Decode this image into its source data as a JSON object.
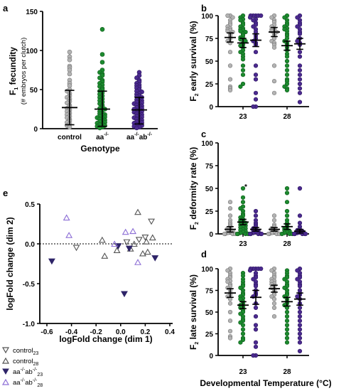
{
  "colors": {
    "control": "#b3b3b3",
    "aa": "#1c8a2e",
    "aaab": "#4b2a8f",
    "aaab_light": "#8d6fd6"
  },
  "panel_a": {
    "label": "a",
    "ylabel_main": "F",
    "ylabel_sub": "1",
    "ylabel_rest": " fecundity",
    "ylabel2": "(# embryos per clutch)",
    "xlabel": "Genotype",
    "cat1": "control",
    "cat2_base": "aa",
    "cat2_sup": "-/-",
    "cat3_base1": "aa",
    "cat3_sup1": "-/-",
    "cat3_base2": "ab",
    "cat3_sup2": "-/-",
    "yticks": [
      "0",
      "50",
      "100",
      "150"
    ]
  },
  "panel_b": {
    "label": "b",
    "ylabel_main": "F",
    "ylabel_sub": "2",
    "ylabel_rest": " early survival (%)",
    "yticks": [
      "0",
      "25",
      "50",
      "75",
      "100"
    ],
    "xticks": [
      "23",
      "28"
    ]
  },
  "panel_c": {
    "label": "c",
    "ylabel_main": "F",
    "ylabel_sub": "2",
    "ylabel_rest": " deformity rate (%)",
    "yticks": [
      "0",
      "25",
      "50",
      "75",
      "100"
    ],
    "xticks": [
      "23",
      "28"
    ],
    "star": "*"
  },
  "panel_d": {
    "label": "d",
    "ylabel_main": "F",
    "ylabel_sub": "2",
    "ylabel_rest": " late survival (%)",
    "yticks": [
      "0",
      "25",
      "50",
      "75",
      "100"
    ],
    "xticks": [
      "23",
      "28"
    ]
  },
  "panel_e": {
    "label": "e",
    "xlabel": "logFold change (dim 1)",
    "ylabel": "logFold change (dim 2)",
    "xticks": [
      "-0.6",
      "-0.4",
      "-0.2",
      "0.0",
      "0.2",
      "0.4"
    ],
    "yticks": [
      "-1.0",
      "-0.5",
      "0.0",
      "0.5"
    ]
  },
  "xlabel_bcd": "Developmental Temperature (°C)",
  "legend": [
    {
      "base": "control",
      "sub": "23",
      "sup1": "",
      "base2": "",
      "sup2": "",
      "marker": "down-open"
    },
    {
      "base": "control",
      "sub": "28",
      "sup1": "",
      "base2": "",
      "sup2": "",
      "marker": "up-open"
    },
    {
      "base": "aa",
      "sup1": "-/-",
      "base2": "ab",
      "sup2": "-/-",
      "sub": "23",
      "marker": "down-filled"
    },
    {
      "base": "aa",
      "sup1": "-/-",
      "base2": "ab",
      "sup2": "-/-",
      "sub": "28",
      "marker": "up-purple"
    }
  ],
  "chart_data": [
    {
      "panel": "a",
      "type": "scatter",
      "categories": [
        "control",
        "aa-/-",
        "aa-/-ab-/-"
      ],
      "ylim": [
        0,
        150
      ],
      "series": [
        {
          "values": [
            98,
            92,
            88,
            80,
            78,
            75,
            70,
            62,
            58,
            55,
            50,
            48,
            45,
            42,
            40,
            38,
            35,
            33,
            30,
            28,
            26,
            24,
            22,
            20,
            18,
            16,
            14,
            12,
            10,
            8,
            6,
            4,
            2
          ],
          "mean": 27,
          "sd_low": 5,
          "sd_high": 49
        },
        {
          "values": [
            127,
            95,
            85,
            75,
            72,
            70,
            68,
            65,
            62,
            60,
            58,
            56,
            54,
            52,
            50,
            48,
            46,
            44,
            42,
            40,
            38,
            36,
            34,
            32,
            30,
            28,
            26,
            25,
            24,
            22,
            20,
            19,
            18,
            17,
            16,
            15,
            14,
            13,
            12,
            11,
            10,
            9,
            8,
            7,
            6,
            5,
            4,
            3,
            2,
            1
          ],
          "mean": 25,
          "sd_low": 3,
          "sd_high": 48
        },
        {
          "values": [
            72,
            68,
            65,
            62,
            60,
            58,
            56,
            55,
            53,
            52,
            50,
            48,
            47,
            45,
            44,
            42,
            41,
            40,
            38,
            37,
            36,
            35,
            34,
            33,
            32,
            31,
            30,
            29,
            28,
            27,
            26,
            25,
            24,
            23,
            22,
            21,
            20,
            19,
            18,
            17,
            16,
            15,
            14,
            13,
            12,
            11,
            10,
            9,
            8,
            7,
            6,
            5,
            4,
            3,
            2,
            1
          ],
          "mean": 24,
          "sd_low": 6,
          "sd_high": 40
        }
      ]
    },
    {
      "panel": "b",
      "type": "scatter",
      "ylim": [
        0,
        100
      ],
      "xticks": [
        "23",
        "28"
      ],
      "groups": [
        {
          "x": "23",
          "series": [
            {
              "values": [
                100,
                100,
                98,
                95,
                92,
                90,
                88,
                86,
                85,
                84,
                83,
                82,
                80,
                78,
                75,
                72,
                70,
                60,
                45,
                30,
                22,
                20,
                18
              ],
              "mean": 76,
              "sem": 5
            },
            {
              "values": [
                100,
                98,
                96,
                95,
                92,
                90,
                88,
                86,
                85,
                84,
                83,
                82,
                80,
                78,
                76,
                75,
                74,
                72,
                70,
                68,
                67,
                65,
                62,
                60,
                58,
                55,
                52,
                45,
                40,
                35,
                25,
                22
              ],
              "mean": 70,
              "sem": 5
            },
            {
              "values": [
                100,
                100,
                100,
                100,
                100,
                98,
                96,
                95,
                92,
                90,
                88,
                85,
                82,
                78,
                75,
                72,
                70,
                68,
                60,
                45,
                35,
                30,
                15,
                8,
                0,
                0
              ],
              "mean": 73,
              "sem": 7
            }
          ]
        },
        {
          "x": "28",
          "series": [
            {
              "values": [
                100,
                98,
                95,
                93,
                90,
                88,
                86,
                85,
                84,
                83,
                82,
                80,
                78,
                75,
                72,
                70,
                68,
                65,
                45,
                28,
                15
              ],
              "mean": 82,
              "sem": 5
            },
            {
              "values": [
                100,
                98,
                95,
                92,
                90,
                88,
                86,
                85,
                83,
                80,
                78,
                75,
                72,
                70,
                68,
                65,
                62,
                58,
                55,
                50,
                45,
                40,
                35,
                30,
                28,
                25,
                22,
                20,
                18
              ],
              "mean": 67,
              "sem": 5
            },
            {
              "values": [
                100,
                98,
                95,
                92,
                90,
                88,
                85,
                82,
                80,
                75,
                72,
                70,
                68,
                60,
                55,
                45,
                40,
                35,
                30,
                25,
                20,
                15,
                5
              ],
              "mean": 69,
              "sem": 6
            }
          ]
        }
      ]
    },
    {
      "panel": "c",
      "type": "scatter",
      "ylim": [
        0,
        100
      ],
      "xticks": [
        "23",
        "28"
      ],
      "groups": [
        {
          "x": "23",
          "series": [
            {
              "values": [
                35,
                28,
                20,
                15,
                12,
                10,
                8,
                6,
                5,
                4,
                3,
                2,
                1,
                0,
                0,
                0,
                0
              ],
              "mean": 5,
              "sem": 3
            },
            {
              "values": [
                50,
                40,
                35,
                30,
                28,
                25,
                22,
                20,
                18,
                16,
                15,
                14,
                13,
                12,
                11,
                10,
                9,
                8,
                7,
                6,
                5,
                4,
                3,
                2,
                1,
                0,
                0,
                0,
                0
              ],
              "mean": 13,
              "sem": 3
            },
            {
              "values": [
                25,
                20,
                15,
                12,
                10,
                8,
                6,
                5,
                4,
                3,
                2,
                1,
                0,
                0,
                0,
                0,
                0
              ],
              "mean": 5,
              "sem": 2
            }
          ]
        },
        {
          "x": "28",
          "series": [
            {
              "values": [
                20,
                15,
                10,
                8,
                6,
                5,
                4,
                3,
                2,
                1,
                0,
                0,
                0,
                0
              ],
              "mean": 5,
              "sem": 2
            },
            {
              "values": [
                50,
                45,
                35,
                25,
                20,
                15,
                12,
                10,
                8,
                6,
                5,
                4,
                3,
                2,
                1,
                0,
                0,
                0
              ],
              "mean": 8,
              "sem": 3
            },
            {
              "values": [
                50,
                20,
                12,
                8,
                5,
                4,
                3,
                2,
                1,
                0,
                0,
                0,
                0,
                0
              ],
              "mean": 3,
              "sem": 2
            }
          ]
        }
      ]
    },
    {
      "panel": "d",
      "type": "scatter",
      "ylim": [
        0,
        100
      ],
      "xticks": [
        "23",
        "28"
      ],
      "groups": [
        {
          "x": "23",
          "series": [
            {
              "values": [
                100,
                98,
                95,
                92,
                90,
                88,
                86,
                85,
                82,
                80,
                78,
                75,
                72,
                70,
                68,
                65,
                60,
                50,
                40,
                28,
                22,
                20
              ],
              "mean": 72,
              "sem": 5
            },
            {
              "values": [
                95,
                92,
                88,
                85,
                82,
                80,
                78,
                75,
                72,
                70,
                68,
                66,
                65,
                62,
                60,
                58,
                56,
                55,
                52,
                50,
                48,
                45,
                42,
                40,
                38,
                35,
                30,
                25,
                20,
                18,
                15
              ],
              "mean": 58,
              "sem": 4
            },
            {
              "values": [
                100,
                100,
                100,
                100,
                100,
                98,
                95,
                92,
                90,
                88,
                85,
                82,
                80,
                75,
                72,
                70,
                68,
                60,
                55,
                45,
                35,
                30,
                15,
                10,
                0,
                0
              ],
              "mean": 67,
              "sem": 8
            }
          ]
        },
        {
          "x": "28",
          "series": [
            {
              "values": [
                100,
                98,
                95,
                92,
                90,
                88,
                86,
                85,
                83,
                82,
                80,
                78,
                75,
                72,
                70,
                68,
                65,
                60,
                55,
                45
              ],
              "mean": 77,
              "sem": 4
            },
            {
              "values": [
                98,
                95,
                92,
                90,
                88,
                85,
                82,
                80,
                78,
                75,
                72,
                70,
                68,
                65,
                62,
                60,
                58,
                55,
                50,
                45,
                40,
                35,
                30,
                25,
                20,
                15
              ],
              "mean": 62,
              "sem": 5
            },
            {
              "values": [
                100,
                98,
                95,
                92,
                90,
                88,
                85,
                82,
                80,
                75,
                72,
                70,
                68,
                65,
                60,
                55,
                50,
                45,
                40,
                35,
                30,
                25,
                20,
                15,
                5
              ],
              "mean": 65,
              "sem": 7
            }
          ]
        }
      ]
    },
    {
      "panel": "e",
      "type": "scatter",
      "xlim": [
        -0.6,
        0.4
      ],
      "ylim": [
        -1.0,
        0.5
      ],
      "series": [
        {
          "name": "control23",
          "points": [
            [
              -0.36,
              -0.05
            ],
            [
              0.25,
              0.28
            ],
            [
              0.15,
              0.05
            ],
            [
              0.05,
              0.02
            ],
            [
              -0.02,
              -0.03
            ],
            [
              0.2,
              0.08
            ]
          ]
        },
        {
          "name": "control28",
          "points": [
            [
              -0.15,
              0.05
            ],
            [
              -0.13,
              -0.15
            ],
            [
              0.08,
              -0.06
            ],
            [
              0.11,
              0.0
            ],
            [
              0.14,
              0.4
            ],
            [
              0.18,
              -0.12
            ],
            [
              0.21,
              0.03
            ],
            [
              0.26,
              0.08
            ],
            [
              -0.03,
              -0.08
            ],
            [
              0.22,
              -0.1
            ]
          ]
        },
        {
          "name": "aa-/-ab-/-23",
          "points": [
            [
              -0.56,
              -0.22
            ],
            [
              0.03,
              -0.63
            ],
            [
              0.28,
              -0.18
            ],
            [
              -0.02,
              -0.03
            ],
            [
              0.07,
              -0.06
            ]
          ]
        },
        {
          "name": "aa-/-ab-/-28",
          "points": [
            [
              -0.44,
              0.33
            ],
            [
              -0.42,
              0.11
            ],
            [
              -0.05,
              0.0
            ],
            [
              0.04,
              0.15
            ],
            [
              0.1,
              0.16
            ],
            [
              0.14,
              -0.23
            ]
          ]
        }
      ]
    }
  ]
}
